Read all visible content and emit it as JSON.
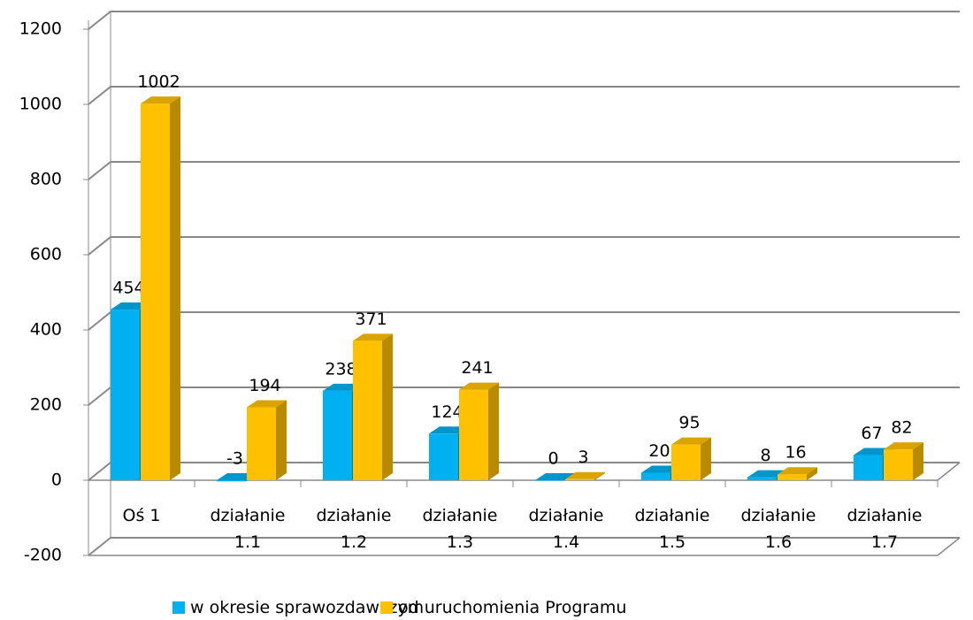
{
  "chart_data": {
    "type": "bar3d",
    "categories": [
      "Oś 1",
      "działanie 1.1",
      "działanie 1.2",
      "działanie 1.3",
      "działanie 1.4",
      "działanie 1.5",
      "działanie 1.6",
      "działanie 1.7"
    ],
    "series": [
      {
        "name": "w okresie sprawozdawczym",
        "color": "#00b0f0",
        "values": [
          454,
          -3,
          238,
          124,
          0,
          20,
          8,
          67
        ]
      },
      {
        "name": "od uruchomienia Programu",
        "color": "#ffc000",
        "values": [
          1002,
          194,
          371,
          241,
          3,
          95,
          16,
          82
        ]
      }
    ],
    "ylim": [
      -200,
      1200
    ],
    "yticks": [
      -200,
      0,
      200,
      400,
      600,
      800,
      1000,
      1200
    ],
    "grid": true,
    "legend": "bottom"
  }
}
